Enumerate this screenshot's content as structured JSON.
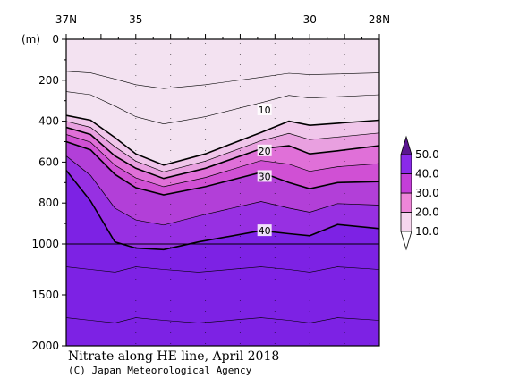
{
  "chart_data": {
    "type": "contour",
    "title": "Nitrate along HE line, April 2018",
    "credit": "(C) Japan Meteorological Agency",
    "xaxis": {
      "range_deg_lat": [
        37,
        28
      ],
      "ticks": [
        {
          "value": 37,
          "label": "37N"
        },
        {
          "value": 35,
          "label": "35"
        },
        {
          "value": 30,
          "label": "30"
        },
        {
          "value": 28,
          "label": "28N"
        }
      ]
    },
    "yaxis": {
      "unit_label": "(m)",
      "range_m": [
        0,
        2000
      ],
      "ticks": [
        {
          "value": 0,
          "label": "0"
        },
        {
          "value": 200,
          "label": "200"
        },
        {
          "value": 400,
          "label": "400"
        },
        {
          "value": 600,
          "label": "600"
        },
        {
          "value": 800,
          "label": "800"
        },
        {
          "value": 1000,
          "label": "1000"
        },
        {
          "value": 1500,
          "label": "1500"
        },
        {
          "value": 2000,
          "label": "2000"
        }
      ]
    },
    "colorbar": {
      "levels": [
        {
          "value": 10,
          "label": "10.0",
          "color": "#f6d6ee"
        },
        {
          "value": 20,
          "label": "20.0",
          "color": "#ee86d8"
        },
        {
          "value": 30,
          "label": "30.0",
          "color": "#c43ed8"
        },
        {
          "value": 40,
          "label": "40.0",
          "color": "#8a2aea"
        },
        {
          "value": 50,
          "label": "50.0",
          "color": "#5a1690"
        }
      ],
      "extend_low_color": "#ffffff",
      "extend_high_color": "#5a1690"
    },
    "fills": [
      {
        "name": "below-10",
        "color": "#f3e2f1"
      },
      {
        "name": "10-15",
        "color": "#f0c6ea"
      },
      {
        "name": "15-20",
        "color": "#e9a0e0"
      },
      {
        "name": "20-25",
        "color": "#e070d8"
      },
      {
        "name": "25-30",
        "color": "#d050d4"
      },
      {
        "name": "30-35",
        "color": "#b23fd8"
      },
      {
        "name": "35-40",
        "color": "#9730e2"
      },
      {
        "name": "above-40",
        "color": "#7d22e4"
      }
    ],
    "contours": [
      {
        "value": 10,
        "label": "10",
        "label_lat": 31.3,
        "label_depth": 345,
        "points": [
          [
            37,
            372
          ],
          [
            36.3,
            395
          ],
          [
            35.6,
            480
          ],
          [
            35,
            560
          ],
          [
            34.2,
            615
          ],
          [
            33,
            560
          ],
          [
            31.4,
            455
          ],
          [
            30.6,
            400
          ],
          [
            30,
            420
          ],
          [
            29.2,
            410
          ],
          [
            28,
            395
          ]
        ]
      },
      {
        "value": 20,
        "label": "20",
        "label_lat": 31.3,
        "label_depth": 545,
        "points": [
          [
            37,
            430
          ],
          [
            36.3,
            465
          ],
          [
            35.6,
            570
          ],
          [
            35,
            630
          ],
          [
            34.2,
            680
          ],
          [
            33,
            630
          ],
          [
            31.4,
            535
          ],
          [
            30.6,
            520
          ],
          [
            30,
            560
          ],
          [
            29.2,
            545
          ],
          [
            28,
            520
          ]
        ]
      },
      {
        "value": 30,
        "label": "30",
        "label_lat": 31.3,
        "label_depth": 670,
        "points": [
          [
            37,
            500
          ],
          [
            36.3,
            540
          ],
          [
            35.6,
            660
          ],
          [
            35,
            725
          ],
          [
            34.2,
            760
          ],
          [
            33,
            720
          ],
          [
            31.4,
            650
          ],
          [
            30.6,
            700
          ],
          [
            30,
            730
          ],
          [
            29.2,
            700
          ],
          [
            28,
            695
          ]
        ]
      },
      {
        "value": 40,
        "label": "40",
        "label_lat": 31.3,
        "label_depth": 935,
        "points": [
          [
            37,
            640
          ],
          [
            36.3,
            790
          ],
          [
            35.6,
            990
          ],
          [
            35,
            1040
          ],
          [
            34.2,
            1055
          ],
          [
            33.2,
            990
          ],
          [
            31.4,
            935
          ],
          [
            30.6,
            950
          ],
          [
            30,
            960
          ],
          [
            29.2,
            905
          ],
          [
            28,
            925
          ]
        ]
      }
    ]
  }
}
